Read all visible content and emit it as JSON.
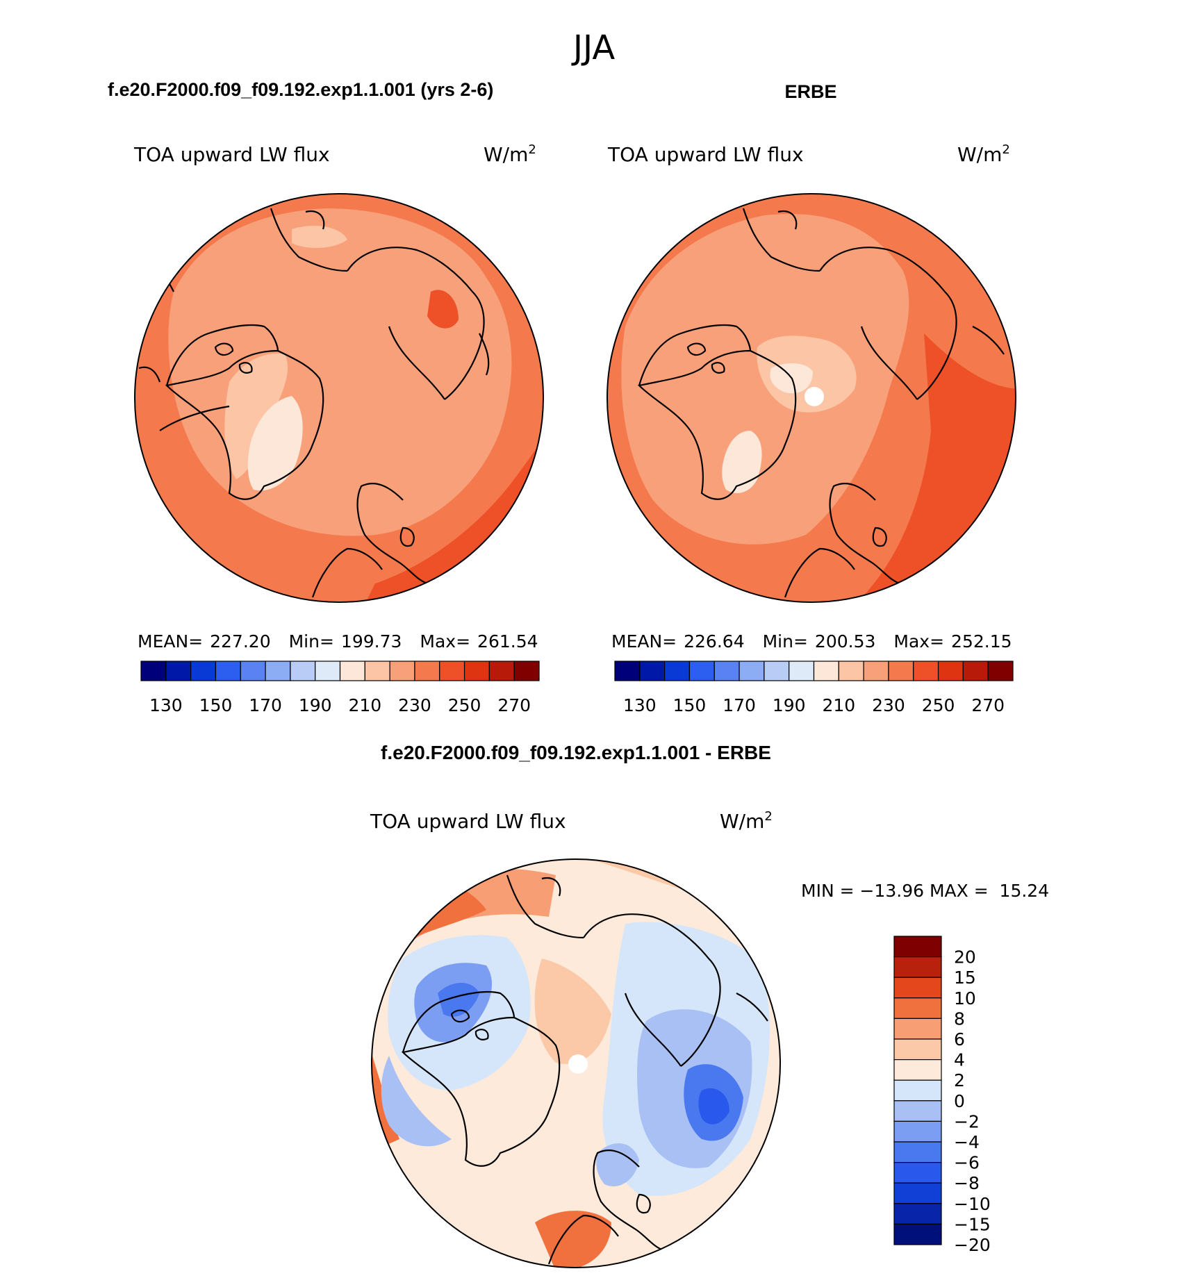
{
  "chart_data": {
    "type": "heatmap",
    "projection": "north polar stereographic",
    "season": "JJA",
    "panels": [
      {
        "id": "model",
        "title": "f.e20.F2000.f09_f09.192.exp1.1.001 (yrs 2-6)",
        "variable": "TOA upward LW flux",
        "units_base": "W/m",
        "units_exp": "2",
        "mean_label": "MEAN=",
        "mean": "227.20",
        "min_label": "Min=",
        "min": "199.73",
        "max_label": "Max=",
        "max": "261.54",
        "colorbar": {
          "levels": [
            130,
            140,
            150,
            160,
            170,
            180,
            190,
            200,
            210,
            220,
            230,
            240,
            250,
            260,
            270
          ],
          "tick_labels": [
            "130",
            "150",
            "170",
            "190",
            "210",
            "230",
            "250",
            "270"
          ]
        }
      },
      {
        "id": "obs",
        "title": "ERBE",
        "variable": "TOA upward LW flux",
        "units_base": "W/m",
        "units_exp": "2",
        "mean_label": "MEAN=",
        "mean": "226.64",
        "min_label": "Min=",
        "min": "200.53",
        "max_label": "Max=",
        "max": "252.15",
        "colorbar": {
          "levels": [
            130,
            140,
            150,
            160,
            170,
            180,
            190,
            200,
            210,
            220,
            230,
            240,
            250,
            260,
            270
          ],
          "tick_labels": [
            "130",
            "150",
            "170",
            "190",
            "210",
            "230",
            "250",
            "270"
          ]
        }
      },
      {
        "id": "diff",
        "title": "f.e20.F2000.f09_f09.192.exp1.1.001 - ERBE",
        "variable": "TOA upward LW flux",
        "units_base": "W/m",
        "units_exp": "2",
        "minmax_label": "MIN = −13.96 MAX =  15.24",
        "min": -13.96,
        "max": 15.24,
        "colorbar": {
          "levels": [
            -20,
            -15,
            -10,
            -8,
            -6,
            -4,
            -2,
            0,
            2,
            4,
            6,
            8,
            10,
            15,
            20
          ],
          "tick_labels": [
            "20",
            "15",
            "10",
            "8",
            "6",
            "4",
            "2",
            "0",
            "−2",
            "−4",
            "−6",
            "−8",
            "−10",
            "−15",
            "−20"
          ]
        }
      }
    ]
  },
  "colors": {
    "abs_palette": [
      "#00007a",
      "#0018a8",
      "#0a3ad6",
      "#2c5ef0",
      "#5a82f2",
      "#8cacf4",
      "#b8ccf6",
      "#deeaf8",
      "#fde7d8",
      "#fbc5a6",
      "#f8a07a",
      "#f47a4e",
      "#ee5128",
      "#de3412",
      "#b81a0a",
      "#800000"
    ],
    "diff_palette": [
      "#00107a",
      "#0824a8",
      "#1040d6",
      "#2858ec",
      "#4a78ef",
      "#7c9ef2",
      "#a9c0f5",
      "#d6e6fa",
      "#fdeada",
      "#fbc8a8",
      "#f79e74",
      "#f1713e",
      "#e4471c",
      "#b8220c",
      "#7e0000"
    ],
    "pole_patch": "#ffffff",
    "coastline": "#000000"
  },
  "season_title": "JJA"
}
